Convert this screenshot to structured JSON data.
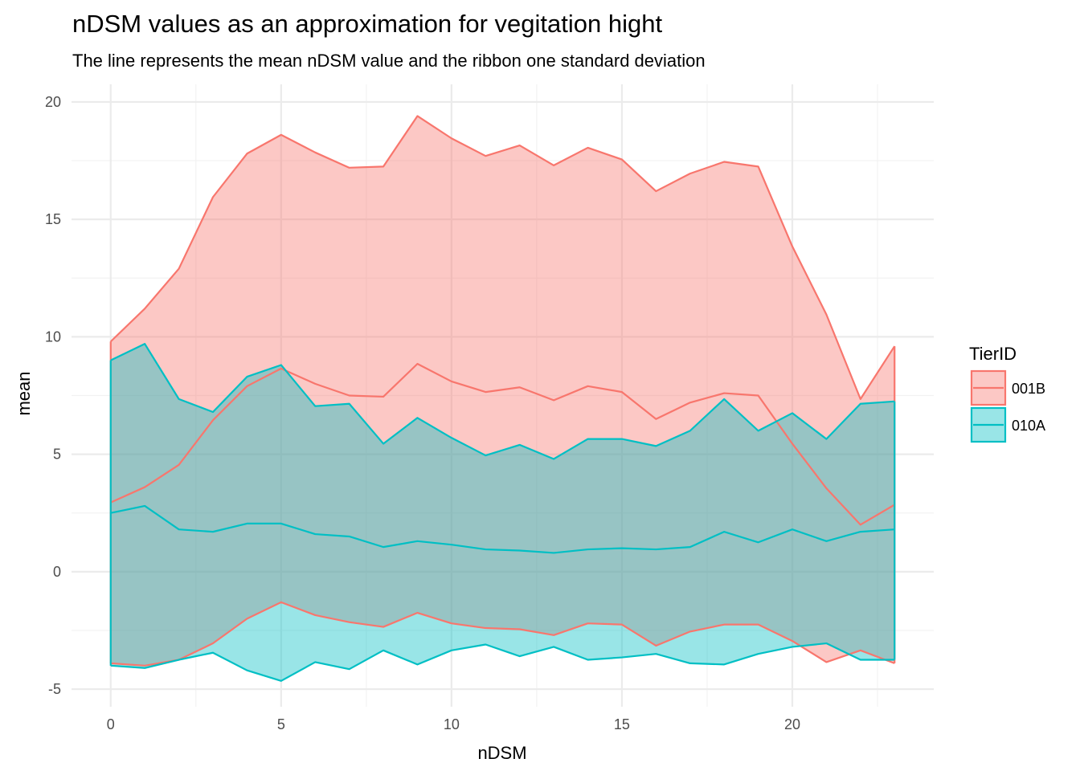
{
  "chart_data": {
    "type": "area",
    "title": "nDSM values as an approximation for vegitation hight",
    "subtitle": "The line represents the mean nDSM value and the ribbon one standard deviation",
    "xlabel": "nDSM",
    "ylabel": "mean",
    "xlim": [
      -1.15,
      24.15
    ],
    "ylim": [
      -5.75,
      20.75
    ],
    "x_ticks": [
      0,
      5,
      10,
      15,
      20
    ],
    "y_ticks": [
      -5,
      0,
      5,
      10,
      15,
      20
    ],
    "x_tick_labels": [
      "0",
      "5",
      "10",
      "15",
      "20"
    ],
    "y_tick_labels": [
      "-5",
      "0",
      "5",
      "10",
      "15",
      "20"
    ],
    "grid": true,
    "legend": {
      "title": "TierID",
      "position": "right"
    },
    "x": [
      0,
      1,
      2,
      3,
      4,
      5,
      6,
      7,
      8,
      9,
      10,
      11,
      12,
      13,
      14,
      15,
      16,
      17,
      18,
      19,
      20,
      21,
      22,
      23
    ],
    "series": [
      {
        "name": "001B",
        "color": "#F8766D",
        "mean": [
          2.95,
          3.6,
          4.55,
          6.45,
          7.9,
          8.65,
          8.0,
          7.5,
          7.45,
          8.85,
          8.1,
          7.65,
          7.85,
          7.3,
          7.9,
          7.65,
          6.5,
          7.2,
          7.6,
          7.5,
          5.45,
          3.55,
          2.0,
          2.85
        ],
        "upper": [
          9.8,
          11.2,
          12.9,
          15.95,
          17.8,
          18.6,
          17.85,
          17.2,
          17.25,
          19.4,
          18.45,
          17.7,
          18.15,
          17.3,
          18.05,
          17.55,
          16.2,
          16.95,
          17.45,
          17.25,
          13.85,
          10.95,
          7.35,
          9.6
        ],
        "lower": [
          -3.9,
          -4.0,
          -3.75,
          -3.05,
          -2.0,
          -1.3,
          -1.85,
          -2.15,
          -2.35,
          -1.75,
          -2.2,
          -2.4,
          -2.45,
          -2.7,
          -2.2,
          -2.25,
          -3.15,
          -2.55,
          -2.25,
          -2.25,
          -2.95,
          -3.85,
          -3.35,
          -3.9
        ]
      },
      {
        "name": "010A",
        "color": "#00BFC4",
        "mean": [
          2.5,
          2.8,
          1.8,
          1.7,
          2.05,
          2.05,
          1.6,
          1.5,
          1.05,
          1.3,
          1.15,
          0.95,
          0.9,
          0.8,
          0.95,
          1.0,
          0.95,
          1.05,
          1.7,
          1.25,
          1.8,
          1.3,
          1.7,
          1.8
        ],
        "upper": [
          9.0,
          9.7,
          7.35,
          6.8,
          8.3,
          8.8,
          7.05,
          7.15,
          5.45,
          6.55,
          5.7,
          4.95,
          5.4,
          4.8,
          5.65,
          5.65,
          5.35,
          6.0,
          7.35,
          6.0,
          6.75,
          5.65,
          7.15,
          7.25
        ],
        "lower": [
          -4.0,
          -4.1,
          -3.75,
          -3.45,
          -4.2,
          -4.65,
          -3.85,
          -4.15,
          -3.35,
          -3.95,
          -3.35,
          -3.1,
          -3.6,
          -3.2,
          -3.75,
          -3.65,
          -3.5,
          -3.9,
          -3.95,
          -3.5,
          -3.2,
          -3.05,
          -3.75,
          -3.75
        ]
      }
    ]
  }
}
